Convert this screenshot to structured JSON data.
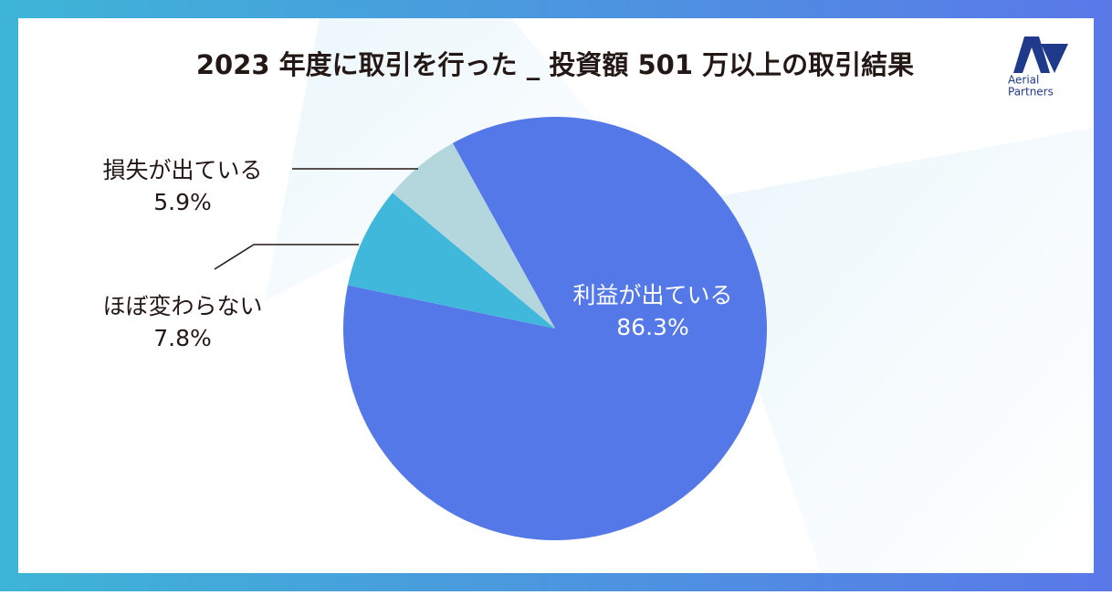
{
  "chart_data": {
    "type": "pie",
    "title": "2023 年度に取引を行った _ 投資額 501 万以上の取引結果",
    "categories": [
      "利益が出ている",
      "ほぼ変わらない",
      "損失が出ている"
    ],
    "values": [
      86.3,
      7.8,
      5.9
    ],
    "value_labels": [
      "86.3%",
      "7.8%",
      "5.9%"
    ],
    "colors": [
      "#5478e8",
      "#3fb8dc",
      "#b3d7dd"
    ]
  },
  "logo": [
    "Aerial",
    "Partners"
  ]
}
